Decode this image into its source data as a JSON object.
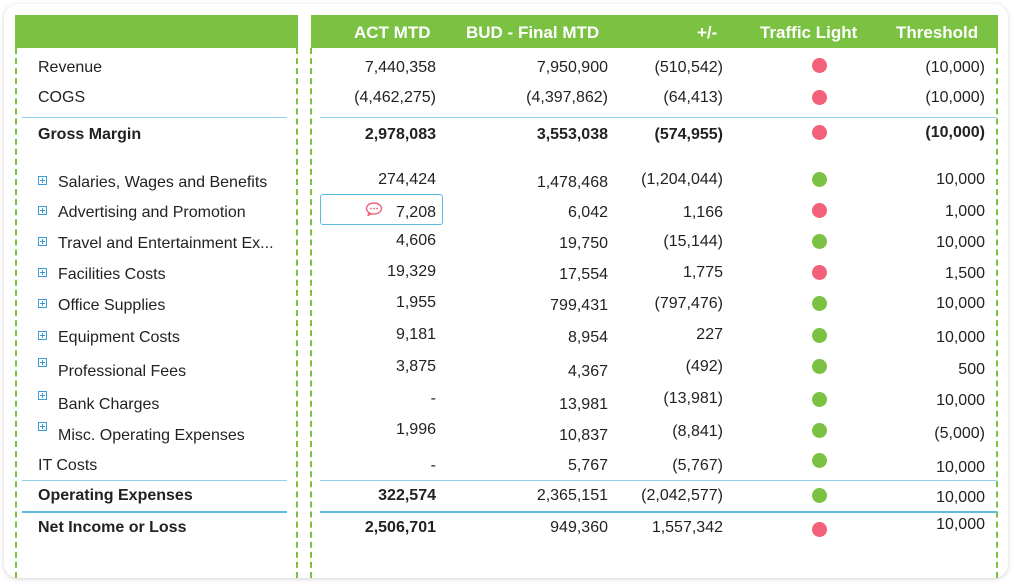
{
  "header": {
    "col_act": "ACT MTD",
    "col_bud": "BUD - Final MTD",
    "col_diff": "+/-",
    "col_light": "Traffic Light",
    "col_threshold": "Threshold"
  },
  "colors": {
    "green": "#7cc242",
    "red": "#f2607a",
    "line": "#8fd0ea"
  },
  "rows": [
    {
      "label": "Revenue",
      "act": "7,440,358",
      "bud": "7,950,900",
      "diff": "(510,542)",
      "light": "red",
      "threshold": "(10,000)"
    },
    {
      "label": "COGS",
      "act": "(4,462,275)",
      "bud": "(4,397,862)",
      "diff": "(64,413)",
      "light": "red",
      "threshold": "(10,000)"
    },
    {
      "label": "Gross Margin",
      "act": "2,978,083",
      "bud": "3,553,038",
      "diff": "(574,955)",
      "light": "red",
      "threshold": "(10,000)"
    },
    {
      "label": "Salaries, Wages and Benefits",
      "act": "274,424",
      "bud": "1,478,468",
      "diff": "(1,204,044)",
      "light": "green",
      "threshold": "10,000"
    },
    {
      "label": "Advertising and Promotion",
      "act": "7,208",
      "bud": "6,042",
      "diff": "1,166",
      "light": "red",
      "threshold": "1,000"
    },
    {
      "label": "Travel and Entertainment Ex...",
      "act": "4,606",
      "bud": "19,750",
      "diff": "(15,144)",
      "light": "green",
      "threshold": "10,000"
    },
    {
      "label": "Facilities Costs",
      "act": "19,329",
      "bud": "17,554",
      "diff": "1,775",
      "light": "red",
      "threshold": "1,500"
    },
    {
      "label": "Office Supplies",
      "act": "1,955",
      "bud": "799,431",
      "diff": "(797,476)",
      "light": "green",
      "threshold": "10,000"
    },
    {
      "label": "Equipment Costs",
      "act": "9,181",
      "bud": "8,954",
      "diff": "227",
      "light": "green",
      "threshold": "10,000"
    },
    {
      "label": "Professional Fees",
      "act": "3,875",
      "bud": "4,367",
      "diff": "(492)",
      "light": "green",
      "threshold": "500"
    },
    {
      "label": "Bank Charges",
      "act": "-",
      "bud": "13,981",
      "diff": "(13,981)",
      "light": "green",
      "threshold": "10,000"
    },
    {
      "label": "Misc. Operating Expenses",
      "act": "1,996",
      "bud": "10,837",
      "diff": "(8,841)",
      "light": "green",
      "threshold": "(5,000)"
    },
    {
      "label": "IT Costs",
      "act": "-",
      "bud": "5,767",
      "diff": "(5,767)",
      "light": "green",
      "threshold": "10,000"
    },
    {
      "label": "Operating Expenses",
      "act": "322,574",
      "bud": "2,365,151",
      "diff": "(2,042,577)",
      "light": "green",
      "threshold": "10,000"
    },
    {
      "label": "Net Income or Loss",
      "act": "2,506,701",
      "bud": "949,360",
      "diff": "1,557,342",
      "light": "red",
      "threshold": "10,000"
    }
  ]
}
